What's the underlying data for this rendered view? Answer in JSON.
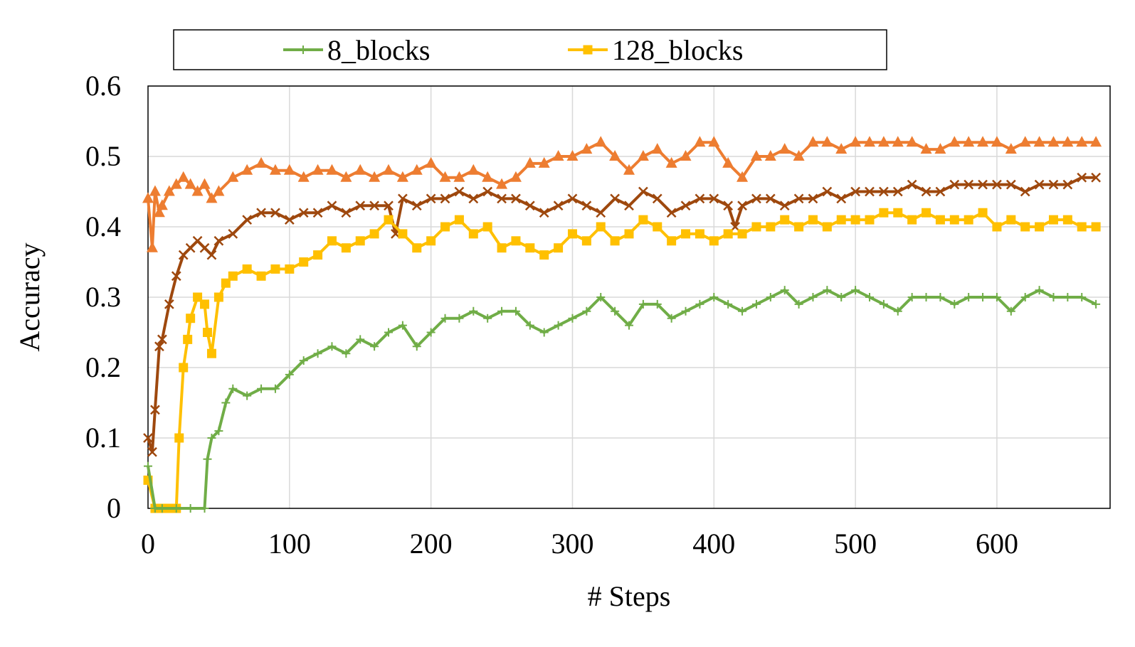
{
  "chart_data": {
    "type": "line",
    "title": "",
    "xlabel": "# Steps",
    "ylabel": "Accuracy",
    "xlim": [
      0,
      680
    ],
    "ylim": [
      0,
      0.6
    ],
    "x_ticks": [
      0,
      100,
      200,
      300,
      400,
      500,
      600
    ],
    "y_ticks": [
      0,
      0.1,
      0.2,
      0.3,
      0.4,
      0.5,
      0.6
    ],
    "x_tick_labels": [
      "0",
      "100",
      "200",
      "300",
      "400",
      "500",
      "600"
    ],
    "y_tick_labels": [
      "0",
      "0.1",
      "0.2",
      "0.3",
      "0.4",
      "0.5",
      "0.6"
    ],
    "grid": true,
    "legend_position": "top",
    "series": [
      {
        "name": "8_blocks",
        "color": "#70ad47",
        "marker": "plus",
        "x": [
          0,
          5,
          10,
          20,
          30,
          40,
          42,
          45,
          50,
          55,
          60,
          70,
          80,
          90,
          100,
          110,
          120,
          130,
          140,
          150,
          160,
          170,
          180,
          190,
          200,
          210,
          220,
          230,
          240,
          250,
          260,
          270,
          280,
          290,
          300,
          310,
          320,
          330,
          340,
          350,
          360,
          370,
          380,
          390,
          400,
          410,
          420,
          430,
          440,
          450,
          460,
          470,
          480,
          490,
          500,
          510,
          520,
          530,
          540,
          550,
          560,
          570,
          580,
          590,
          600,
          610,
          620,
          630,
          640,
          650,
          660,
          670
        ],
        "values": [
          0.06,
          0.0,
          0.0,
          0.0,
          0.0,
          0.0,
          0.07,
          0.1,
          0.11,
          0.15,
          0.17,
          0.16,
          0.17,
          0.17,
          0.19,
          0.21,
          0.22,
          0.23,
          0.22,
          0.24,
          0.23,
          0.25,
          0.26,
          0.23,
          0.25,
          0.27,
          0.27,
          0.28,
          0.27,
          0.28,
          0.28,
          0.26,
          0.25,
          0.26,
          0.27,
          0.28,
          0.3,
          0.28,
          0.26,
          0.29,
          0.29,
          0.27,
          0.28,
          0.29,
          0.3,
          0.29,
          0.28,
          0.29,
          0.3,
          0.31,
          0.29,
          0.3,
          0.31,
          0.3,
          0.31,
          0.3,
          0.29,
          0.28,
          0.3,
          0.3,
          0.3,
          0.29,
          0.3,
          0.3,
          0.3,
          0.28,
          0.3,
          0.31,
          0.3,
          0.3,
          0.3,
          0.29
        ]
      },
      {
        "name": "128_blocks",
        "color": "#ffc000",
        "marker": "square",
        "x": [
          0,
          5,
          10,
          15,
          20,
          22,
          25,
          28,
          30,
          35,
          40,
          42,
          45,
          50,
          55,
          60,
          70,
          80,
          90,
          100,
          110,
          120,
          130,
          140,
          150,
          160,
          170,
          180,
          190,
          200,
          210,
          220,
          230,
          240,
          250,
          260,
          270,
          280,
          290,
          300,
          310,
          320,
          330,
          340,
          350,
          360,
          370,
          380,
          390,
          400,
          410,
          420,
          430,
          440,
          450,
          460,
          470,
          480,
          490,
          500,
          510,
          520,
          530,
          540,
          550,
          560,
          570,
          580,
          590,
          600,
          610,
          620,
          630,
          640,
          650,
          660,
          670
        ],
        "values": [
          0.04,
          0.0,
          0.0,
          0.0,
          0.0,
          0.1,
          0.2,
          0.24,
          0.27,
          0.3,
          0.29,
          0.25,
          0.22,
          0.3,
          0.32,
          0.33,
          0.34,
          0.33,
          0.34,
          0.34,
          0.35,
          0.36,
          0.38,
          0.37,
          0.38,
          0.39,
          0.41,
          0.39,
          0.37,
          0.38,
          0.4,
          0.41,
          0.39,
          0.4,
          0.37,
          0.38,
          0.37,
          0.36,
          0.37,
          0.39,
          0.38,
          0.4,
          0.38,
          0.39,
          0.41,
          0.4,
          0.38,
          0.39,
          0.39,
          0.38,
          0.39,
          0.39,
          0.4,
          0.4,
          0.41,
          0.4,
          0.41,
          0.4,
          0.41,
          0.41,
          0.41,
          0.42,
          0.42,
          0.41,
          0.42,
          0.41,
          0.41,
          0.41,
          0.42,
          0.4,
          0.41,
          0.4,
          0.4,
          0.41,
          0.41,
          0.4,
          0.4
        ]
      },
      {
        "name": "",
        "color": "#9e480e",
        "marker": "x",
        "x": [
          0,
          3,
          5,
          8,
          10,
          15,
          20,
          25,
          30,
          35,
          40,
          45,
          50,
          60,
          70,
          80,
          90,
          100,
          110,
          120,
          130,
          140,
          150,
          160,
          170,
          175,
          180,
          190,
          200,
          210,
          220,
          230,
          240,
          250,
          260,
          270,
          280,
          290,
          300,
          310,
          320,
          330,
          340,
          350,
          360,
          370,
          380,
          390,
          400,
          410,
          415,
          420,
          430,
          440,
          450,
          460,
          470,
          480,
          490,
          500,
          510,
          520,
          530,
          540,
          550,
          560,
          570,
          580,
          590,
          600,
          610,
          620,
          630,
          640,
          650,
          660,
          670
        ],
        "values": [
          0.1,
          0.08,
          0.14,
          0.23,
          0.24,
          0.29,
          0.33,
          0.36,
          0.37,
          0.38,
          0.37,
          0.36,
          0.38,
          0.39,
          0.41,
          0.42,
          0.42,
          0.41,
          0.42,
          0.42,
          0.43,
          0.42,
          0.43,
          0.43,
          0.43,
          0.39,
          0.44,
          0.43,
          0.44,
          0.44,
          0.45,
          0.44,
          0.45,
          0.44,
          0.44,
          0.43,
          0.42,
          0.43,
          0.44,
          0.43,
          0.42,
          0.44,
          0.43,
          0.45,
          0.44,
          0.42,
          0.43,
          0.44,
          0.44,
          0.43,
          0.4,
          0.43,
          0.44,
          0.44,
          0.43,
          0.44,
          0.44,
          0.45,
          0.44,
          0.45,
          0.45,
          0.45,
          0.45,
          0.46,
          0.45,
          0.45,
          0.46,
          0.46,
          0.46,
          0.46,
          0.46,
          0.45,
          0.46,
          0.46,
          0.46,
          0.47,
          0.47
        ]
      },
      {
        "name": "",
        "color": "#ed7d31",
        "marker": "triangle",
        "x": [
          0,
          3,
          5,
          8,
          10,
          15,
          20,
          25,
          30,
          35,
          40,
          45,
          50,
          60,
          70,
          80,
          90,
          100,
          110,
          120,
          130,
          140,
          150,
          160,
          170,
          180,
          190,
          200,
          210,
          220,
          230,
          240,
          250,
          260,
          270,
          280,
          290,
          300,
          310,
          320,
          330,
          340,
          350,
          360,
          370,
          380,
          390,
          400,
          410,
          420,
          430,
          440,
          450,
          460,
          470,
          480,
          490,
          500,
          510,
          520,
          530,
          540,
          550,
          560,
          570,
          580,
          590,
          600,
          610,
          620,
          630,
          640,
          650,
          660,
          670
        ],
        "values": [
          0.44,
          0.37,
          0.45,
          0.42,
          0.43,
          0.45,
          0.46,
          0.47,
          0.46,
          0.45,
          0.46,
          0.44,
          0.45,
          0.47,
          0.48,
          0.49,
          0.48,
          0.48,
          0.47,
          0.48,
          0.48,
          0.47,
          0.48,
          0.47,
          0.48,
          0.47,
          0.48,
          0.49,
          0.47,
          0.47,
          0.48,
          0.47,
          0.46,
          0.47,
          0.49,
          0.49,
          0.5,
          0.5,
          0.51,
          0.52,
          0.5,
          0.48,
          0.5,
          0.51,
          0.49,
          0.5,
          0.52,
          0.52,
          0.49,
          0.47,
          0.5,
          0.5,
          0.51,
          0.5,
          0.52,
          0.52,
          0.51,
          0.52,
          0.52,
          0.52,
          0.52,
          0.52,
          0.51,
          0.51,
          0.52,
          0.52,
          0.52,
          0.52,
          0.51,
          0.52,
          0.52,
          0.52,
          0.52,
          0.52,
          0.52
        ]
      }
    ]
  }
}
